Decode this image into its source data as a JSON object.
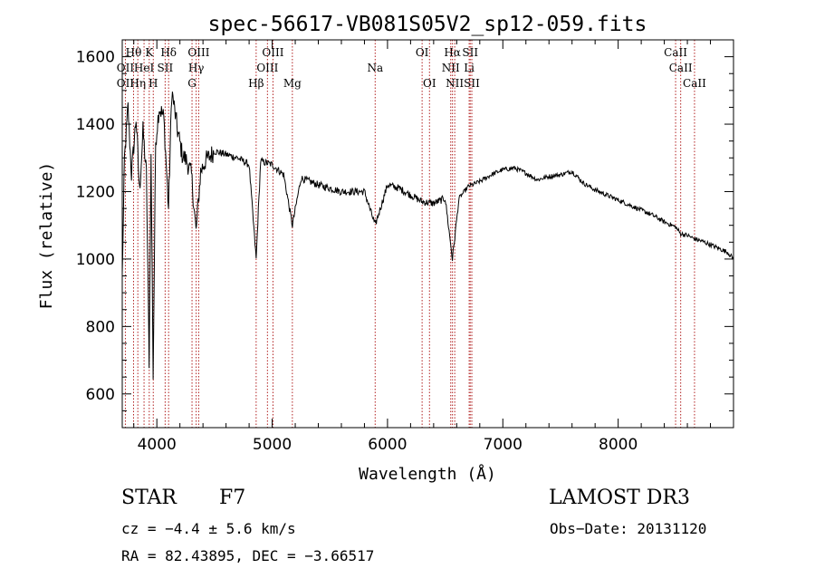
{
  "chart_data": {
    "type": "line",
    "title": "spec-56617-VB081S05V2_sp12-059.fits",
    "xlabel": "Wavelength (Å)",
    "ylabel": "Flux (relative)",
    "xlim": [
      3700,
      9000
    ],
    "ylim": [
      500,
      1650
    ],
    "x_ticks": [
      4000,
      5000,
      6000,
      7000,
      8000
    ],
    "y_ticks": [
      600,
      800,
      1000,
      1200,
      1400,
      1600
    ],
    "grid": false,
    "line_color": "#000000",
    "marker_color": "#b22222",
    "spectrum_anchors": [
      [
        3700,
        950
      ],
      [
        3720,
        1300
      ],
      [
        3750,
        1450
      ],
      [
        3780,
        1250
      ],
      [
        3820,
        1420
      ],
      [
        3850,
        1200
      ],
      [
        3880,
        1380
      ],
      [
        3910,
        1250
      ],
      [
        3933,
        700
      ],
      [
        3950,
        1300
      ],
      [
        3968,
        650
      ],
      [
        3990,
        1350
      ],
      [
        4020,
        1450
      ],
      [
        4060,
        1420
      ],
      [
        4101,
        1150
      ],
      [
        4130,
        1500
      ],
      [
        4180,
        1380
      ],
      [
        4220,
        1310
      ],
      [
        4260,
        1290
      ],
      [
        4300,
        1250
      ],
      [
        4340,
        1080
      ],
      [
        4380,
        1260
      ],
      [
        4420,
        1290
      ],
      [
        4500,
        1320
      ],
      [
        4600,
        1310
      ],
      [
        4700,
        1300
      ],
      [
        4800,
        1280
      ],
      [
        4861,
        1000
      ],
      [
        4900,
        1290
      ],
      [
        5000,
        1280
      ],
      [
        5100,
        1250
      ],
      [
        5175,
        1100
      ],
      [
        5250,
        1240
      ],
      [
        5400,
        1220
      ],
      [
        5600,
        1200
      ],
      [
        5800,
        1200
      ],
      [
        5893,
        1100
      ],
      [
        6000,
        1220
      ],
      [
        6100,
        1210
      ],
      [
        6200,
        1190
      ],
      [
        6300,
        1170
      ],
      [
        6400,
        1165
      ],
      [
        6500,
        1180
      ],
      [
        6563,
        1000
      ],
      [
        6620,
        1180
      ],
      [
        6700,
        1215
      ],
      [
        6800,
        1230
      ],
      [
        6900,
        1250
      ],
      [
        7000,
        1265
      ],
      [
        7100,
        1270
      ],
      [
        7200,
        1255
      ],
      [
        7300,
        1235
      ],
      [
        7400,
        1245
      ],
      [
        7500,
        1250
      ],
      [
        7600,
        1260
      ],
      [
        7700,
        1225
      ],
      [
        7800,
        1205
      ],
      [
        7900,
        1190
      ],
      [
        8000,
        1175
      ],
      [
        8100,
        1160
      ],
      [
        8200,
        1145
      ],
      [
        8300,
        1130
      ],
      [
        8400,
        1110
      ],
      [
        8498,
        1095
      ],
      [
        8542,
        1075
      ],
      [
        8600,
        1070
      ],
      [
        8662,
        1060
      ],
      [
        8750,
        1050
      ],
      [
        8850,
        1035
      ],
      [
        8950,
        1020
      ],
      [
        9000,
        1000
      ]
    ],
    "lines": [
      {
        "name": "OII",
        "wave": 3727,
        "row": 3
      },
      {
        "name": "OII",
        "wave": 3727,
        "row": 2
      },
      {
        "name": "Hθ",
        "wave": 3798,
        "row": 1
      },
      {
        "name": "Hη",
        "wave": 3835,
        "row": 3
      },
      {
        "name": "HeI",
        "wave": 3889,
        "row": 2
      },
      {
        "name": "K",
        "wave": 3934,
        "row": 1
      },
      {
        "name": "SII",
        "wave": 4072,
        "row": 2
      },
      {
        "name": "H",
        "wave": 3969,
        "row": 3
      },
      {
        "name": "Hδ",
        "wave": 4102,
        "row": 1
      },
      {
        "name": "OIII",
        "wave": 4363,
        "row": 1
      },
      {
        "name": "Hγ",
        "wave": 4341,
        "row": 2
      },
      {
        "name": "G",
        "wave": 4305,
        "row": 3
      },
      {
        "name": "Hβ",
        "wave": 4861,
        "row": 3
      },
      {
        "name": "OIII",
        "wave": 5007,
        "row": 1
      },
      {
        "name": "OIII",
        "wave": 4959,
        "row": 2
      },
      {
        "name": "Mg",
        "wave": 5175,
        "row": 3
      },
      {
        "name": "Na",
        "wave": 5893,
        "row": 2
      },
      {
        "name": "OI",
        "wave": 6300,
        "row": 1
      },
      {
        "name": "OI",
        "wave": 6364,
        "row": 3
      },
      {
        "name": "Hα",
        "wave": 6563,
        "row": 1
      },
      {
        "name": "NII",
        "wave": 6548,
        "row": 2
      },
      {
        "name": "NII",
        "wave": 6583,
        "row": 3
      },
      {
        "name": "SII",
        "wave": 6717,
        "row": 1
      },
      {
        "name": "Li",
        "wave": 6708,
        "row": 2
      },
      {
        "name": "SII",
        "wave": 6731,
        "row": 3
      },
      {
        "name": "CaII",
        "wave": 8498,
        "row": 1
      },
      {
        "name": "CaII",
        "wave": 8542,
        "row": 2
      },
      {
        "name": "CaII",
        "wave": 8662,
        "row": 3
      }
    ]
  },
  "info": {
    "class_label": "STAR",
    "subclass": "F7",
    "survey": "LAMOST DR3",
    "redshift_text": "cz = −4.4 ± 5.6 km/s",
    "obs_date_text": "Obs−Date: 20131120",
    "coords_text": "RA =  82.43895, DEC =  −3.66517"
  }
}
